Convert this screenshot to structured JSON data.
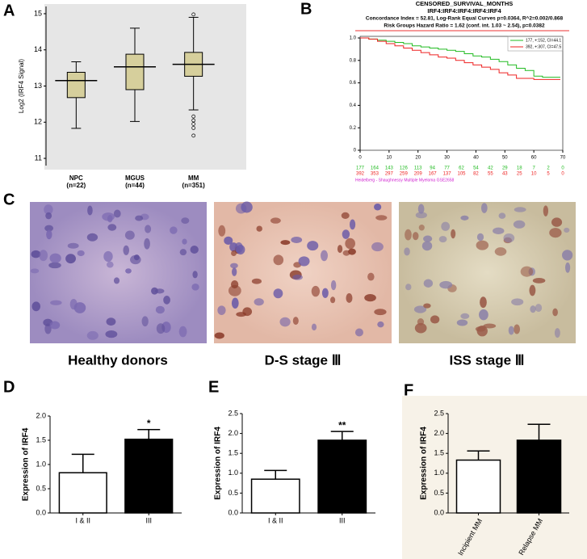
{
  "panel_labels": [
    "A",
    "B",
    "C",
    "D",
    "E",
    "F"
  ],
  "chart_data": [
    {
      "type": "box",
      "y_label": "Log2 (IRF4 Signal)",
      "categories": [
        "NPC",
        "MGUS",
        "MM"
      ],
      "category_notes": [
        "(n=22)",
        "(n=44)",
        "(n=351)"
      ],
      "boxes": [
        {
          "whisker_low": 11.83,
          "q1": 12.68,
          "median": 13.15,
          "q3": 13.38,
          "whisker_high": 13.67,
          "outliers": []
        },
        {
          "whisker_low": 12.02,
          "q1": 12.9,
          "median": 13.53,
          "q3": 13.88,
          "whisker_high": 14.6,
          "outliers": []
        },
        {
          "whisker_low": 12.34,
          "q1": 13.27,
          "median": 13.6,
          "q3": 13.93,
          "whisker_high": 14.9,
          "outliers": [
            14.98,
            12.16,
            12.05,
            11.95,
            11.84,
            11.63
          ]
        }
      ],
      "color": "#d6cf9c",
      "ylim": [
        10.8,
        15.2
      ],
      "yticks": [
        11,
        12,
        13,
        14,
        15
      ]
    },
    {
      "type": "line",
      "title_lines": [
        "CENSORED_SURVIVAL_MONTHS",
        "IRF4:IRF4:IRF4:IRF4:IRF4",
        "Concordance Index = 52.81, Log-Rank Equal Curves p=0.0364, R^2=0.002/0.868",
        "Risk Groups Hazard Ratio = 1.62 (conf. int. 1.03 ~ 2.54), p=0.0382"
      ],
      "series": [
        {
          "name": "177, +:152, CI=44.1",
          "color": "#22bb22",
          "x": [
            0,
            3,
            6,
            9,
            12,
            15,
            18,
            21,
            24,
            27,
            30,
            33,
            36,
            39,
            42,
            45,
            48,
            51,
            54,
            57,
            60,
            63,
            66,
            69
          ],
          "values": [
            1,
            0.99,
            0.98,
            0.97,
            0.96,
            0.95,
            0.93,
            0.92,
            0.91,
            0.9,
            0.89,
            0.88,
            0.86,
            0.84,
            0.83,
            0.81,
            0.79,
            0.76,
            0.73,
            0.71,
            0.66,
            0.65,
            0.65,
            0.65
          ]
        },
        {
          "name": "392, +:307, CI=47.5",
          "color": "#ee2222",
          "x": [
            0,
            3,
            6,
            9,
            12,
            15,
            18,
            21,
            24,
            27,
            30,
            33,
            36,
            39,
            42,
            45,
            48,
            51,
            54,
            57,
            60,
            63,
            66,
            69
          ],
          "values": [
            1,
            0.99,
            0.97,
            0.95,
            0.93,
            0.91,
            0.89,
            0.87,
            0.85,
            0.83,
            0.82,
            0.8,
            0.78,
            0.76,
            0.74,
            0.72,
            0.69,
            0.67,
            0.64,
            0.64,
            0.63,
            0.63,
            0.63,
            0.63
          ]
        }
      ],
      "xlim": [
        0,
        70
      ],
      "xticks": [
        0,
        10,
        20,
        30,
        40,
        50,
        60,
        70
      ],
      "ylim": [
        0,
        1
      ],
      "yticks": [
        0,
        0.2,
        0.4,
        0.6,
        0.8,
        {
          "value": 1,
          "label": "1.0"
        }
      ],
      "legend": "upper right",
      "at_risk": {
        "x": [
          0,
          5,
          10,
          15,
          20,
          25,
          30,
          35,
          40,
          45,
          50,
          55,
          60,
          65,
          70
        ],
        "rows": [
          {
            "color": "#22bb22",
            "values": [
              177,
              164,
              143,
              126,
              113,
              94,
              77,
              62,
              54,
              42,
              29,
              18,
              7,
              2,
              0
            ]
          },
          {
            "color": "#ee2222",
            "values": [
              392,
              353,
              297,
              259,
              209,
              167,
              137,
              105,
              82,
              55,
              43,
              25,
              10,
              5,
              0
            ]
          }
        ]
      },
      "footer": "Heidelberg - Shaughnessy Multiple Myeloma GSE2658"
    },
    {
      "type": "bar",
      "y_label": "Expression of IRF4",
      "categories": [
        "I & II",
        "III"
      ],
      "values": [
        0.83,
        1.52
      ],
      "errors": [
        0.38,
        0.2
      ],
      "colors": [
        "#ffffff",
        "#000000"
      ],
      "value_annotations": [
        null,
        "*"
      ],
      "ylim": [
        0,
        2
      ],
      "yticks": [
        {
          "value": 0,
          "label": "0.0"
        },
        {
          "value": 0.5,
          "label": "0.5"
        },
        {
          "value": 1,
          "label": "1.0"
        },
        {
          "value": 1.5,
          "label": "1.5"
        },
        {
          "value": 2,
          "label": "2.0"
        }
      ]
    },
    {
      "type": "bar",
      "y_label": "Expression of IRF4",
      "categories": [
        "I & II",
        "III"
      ],
      "values": [
        0.85,
        1.83
      ],
      "errors": [
        0.22,
        0.22
      ],
      "colors": [
        "#ffffff",
        "#000000"
      ],
      "value_annotations": [
        null,
        "**"
      ],
      "ylim": [
        0,
        2.5
      ],
      "yticks": [
        {
          "value": 0,
          "label": "0.0"
        },
        {
          "value": 0.5,
          "label": "0.5"
        },
        {
          "value": 1,
          "label": "1.0"
        },
        {
          "value": 1.5,
          "label": "1.5"
        },
        {
          "value": 2,
          "label": "2.0"
        },
        2.5
      ]
    },
    {
      "type": "bar",
      "y_label": "Expression of IRF4",
      "categories": [
        "Incipient MM",
        "Relapse MM"
      ],
      "values": [
        1.33,
        1.83
      ],
      "errors": [
        0.23,
        0.4
      ],
      "colors": [
        "#ffffff",
        "#000000"
      ],
      "value_annotations": [
        null,
        null
      ],
      "ylim": [
        0,
        2.5
      ],
      "yticks": [
        {
          "value": 0,
          "label": "0.0"
        },
        {
          "value": 0.5,
          "label": "0.5"
        },
        {
          "value": 1,
          "label": "1.0"
        },
        {
          "value": 1.5,
          "label": "1.5"
        },
        {
          "value": 2,
          "label": "2.0"
        },
        2.5
      ]
    }
  ],
  "images": {
    "captions": [
      "Healthy donors",
      "D-S stage Ⅲ",
      "ISS stage Ⅲ"
    ]
  }
}
